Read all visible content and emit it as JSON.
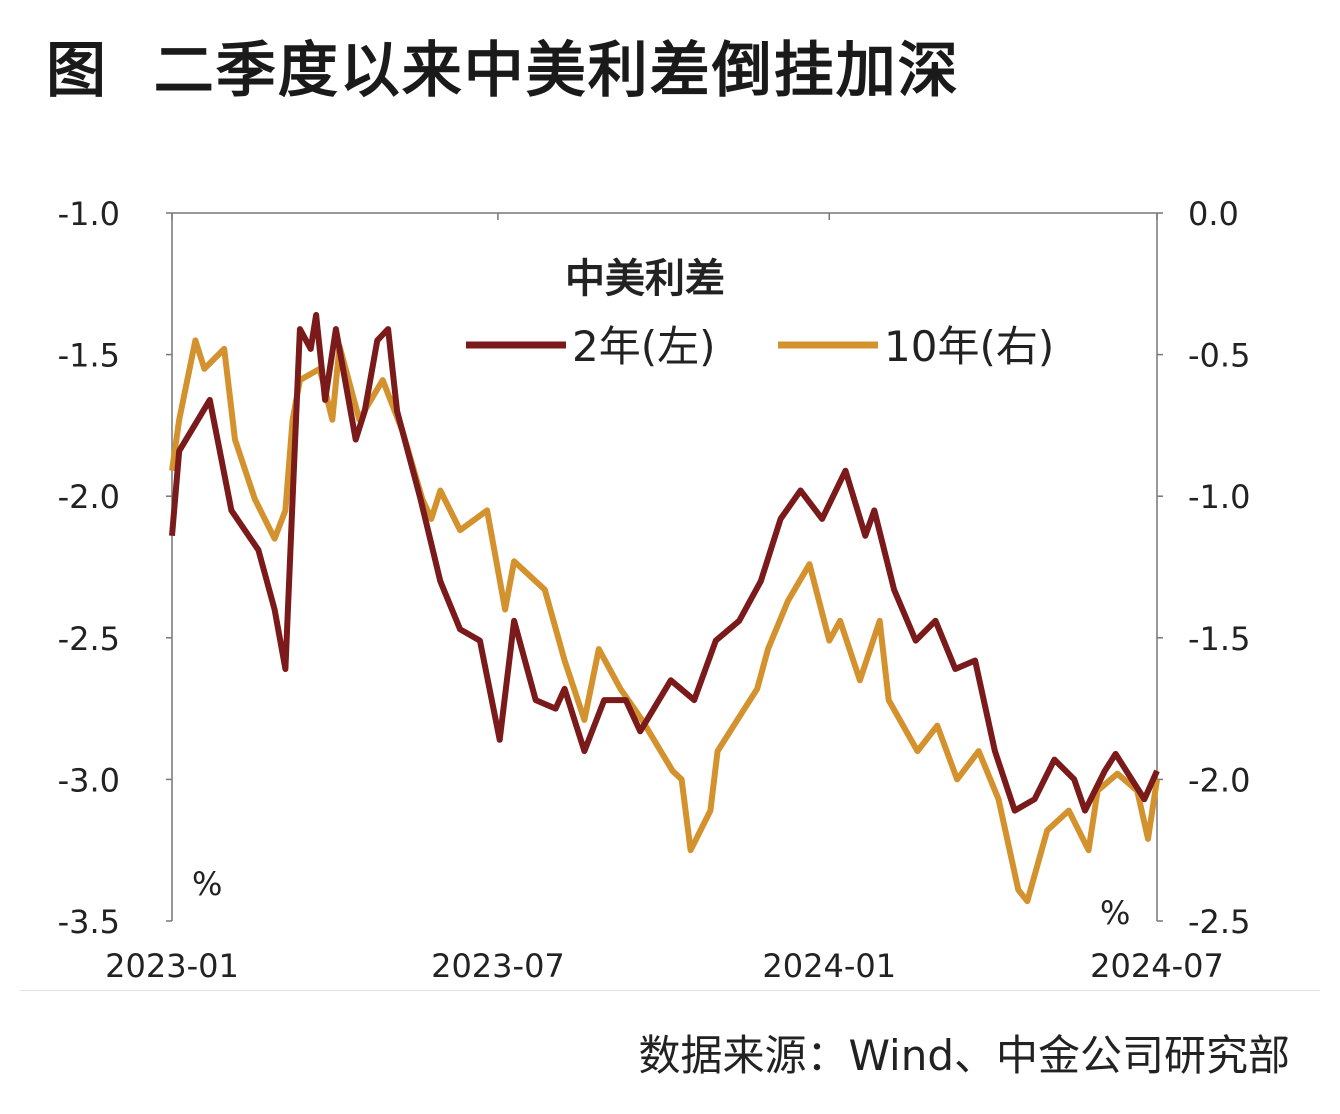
{
  "title": "图  二季度以来中美利差倒挂加深",
  "source": "数据来源：Wind、中金公司研究部",
  "chart_data": {
    "type": "line",
    "legend_title": "中美利差",
    "legend_placement": "top-center",
    "grid": false,
    "xlim": [
      "2023-01-01",
      "2024-07-01"
    ],
    "x_ticks": [
      "2023-01",
      "2023-07",
      "2024-01",
      "2024-07"
    ],
    "x_tick_dates": [
      "2023-01-01",
      "2023-07-01",
      "2024-01-01",
      "2024-07-01"
    ],
    "y_left": {
      "lim": [
        -3.5,
        -1.0
      ],
      "ticks": [
        "-1.0",
        "-1.5",
        "-2.0",
        "-2.5",
        "-3.0",
        "-3.5"
      ],
      "unit": "%"
    },
    "y_right": {
      "lim": [
        -2.5,
        0.0
      ],
      "ticks": [
        "0.0",
        "-0.5",
        "-1.0",
        "-1.5",
        "-2.0",
        "-2.5"
      ],
      "unit": "%"
    },
    "series": [
      {
        "name": "2年(左)",
        "axis": "left",
        "color": "#7a1a1a",
        "x": [
          "2023-01-01",
          "2023-01-05",
          "2023-01-22",
          "2023-02-03",
          "2023-02-18",
          "2023-02-27",
          "2023-03-05",
          "2023-03-09",
          "2023-03-13",
          "2023-03-19",
          "2023-03-22",
          "2023-03-27",
          "2023-04-02",
          "2023-04-13",
          "2023-04-18",
          "2023-04-25",
          "2023-05-01",
          "2023-05-06",
          "2023-05-19",
          "2023-05-30",
          "2023-06-10",
          "2023-06-21",
          "2023-07-02",
          "2023-07-10",
          "2023-07-22",
          "2023-08-02",
          "2023-08-07",
          "2023-08-18",
          "2023-08-29",
          "2023-09-10",
          "2023-09-18",
          "2023-10-05",
          "2023-10-18",
          "2023-10-30",
          "2023-11-12",
          "2023-11-24",
          "2023-12-05",
          "2023-12-16",
          "2023-12-28",
          "2024-01-10",
          "2024-01-21",
          "2024-01-26",
          "2024-02-06",
          "2024-02-18",
          "2024-02-29",
          "2024-03-11",
          "2024-03-22",
          "2024-04-02",
          "2024-04-13",
          "2024-04-24",
          "2024-05-05",
          "2024-05-16",
          "2024-05-22",
          "2024-06-02",
          "2024-06-08",
          "2024-06-19",
          "2024-06-24",
          "2024-07-01"
        ],
        "values": [
          -2.14,
          -1.84,
          -1.66,
          -2.05,
          -2.19,
          -2.4,
          -2.61,
          -2.01,
          -1.41,
          -1.48,
          -1.36,
          -1.66,
          -1.41,
          -1.8,
          -1.7,
          -1.45,
          -1.41,
          -1.7,
          -2.01,
          -2.3,
          -2.47,
          -2.51,
          -2.86,
          -2.44,
          -2.72,
          -2.75,
          -2.68,
          -2.9,
          -2.72,
          -2.72,
          -2.83,
          -2.65,
          -2.72,
          -2.51,
          -2.44,
          -2.3,
          -2.08,
          -1.98,
          -2.08,
          -1.91,
          -2.14,
          -2.05,
          -2.33,
          -2.51,
          -2.44,
          -2.61,
          -2.58,
          -2.9,
          -3.11,
          -3.07,
          -2.93,
          -3.0,
          -3.11,
          -2.97,
          -2.91,
          -3.02,
          -3.07,
          -2.97
        ]
      },
      {
        "name": "10年(右)",
        "axis": "right",
        "color": "#d4922e",
        "x": [
          "2023-01-01",
          "2023-01-05",
          "2023-01-14",
          "2023-01-19",
          "2023-01-30",
          "2023-02-05",
          "2023-02-16",
          "2023-02-27",
          "2023-03-05",
          "2023-03-09",
          "2023-03-13",
          "2023-03-24",
          "2023-03-31",
          "2023-04-04",
          "2023-04-15",
          "2023-04-28",
          "2023-05-09",
          "2023-05-20",
          "2023-05-25",
          "2023-05-30",
          "2023-06-10",
          "2023-06-25",
          "2023-07-05",
          "2023-07-10",
          "2023-07-27",
          "2023-08-07",
          "2023-08-18",
          "2023-08-26",
          "2023-09-07",
          "2023-09-19",
          "2023-10-06",
          "2023-10-11",
          "2023-10-16",
          "2023-10-27",
          "2023-10-31",
          "2023-11-11",
          "2023-11-22",
          "2023-11-28",
          "2023-12-09",
          "2023-12-21",
          "2024-01-01",
          "2024-01-07",
          "2024-01-18",
          "2024-01-29",
          "2024-02-03",
          "2024-02-19",
          "2024-03-01",
          "2024-03-12",
          "2024-03-24",
          "2024-04-04",
          "2024-04-15",
          "2024-04-20",
          "2024-05-01",
          "2024-05-13",
          "2024-05-24",
          "2024-05-29",
          "2024-06-09",
          "2024-06-20",
          "2024-06-26",
          "2024-07-01"
        ],
        "values": [
          -0.91,
          -0.73,
          -0.45,
          -0.55,
          -0.48,
          -0.8,
          -1.01,
          -1.15,
          -1.05,
          -0.73,
          -0.59,
          -0.55,
          -0.73,
          -0.47,
          -0.73,
          -0.59,
          -0.77,
          -1.01,
          -1.08,
          -0.98,
          -1.12,
          -1.05,
          -1.4,
          -1.23,
          -1.33,
          -1.58,
          -1.79,
          -1.54,
          -1.68,
          -1.79,
          -1.97,
          -2.0,
          -2.25,
          -2.11,
          -1.9,
          -1.79,
          -1.68,
          -1.54,
          -1.37,
          -1.24,
          -1.51,
          -1.44,
          -1.65,
          -1.44,
          -1.72,
          -1.9,
          -1.81,
          -2.0,
          -1.9,
          -2.07,
          -2.39,
          -2.43,
          -2.18,
          -2.11,
          -2.25,
          -2.04,
          -1.98,
          -2.04,
          -2.21,
          -2.0
        ]
      }
    ]
  }
}
